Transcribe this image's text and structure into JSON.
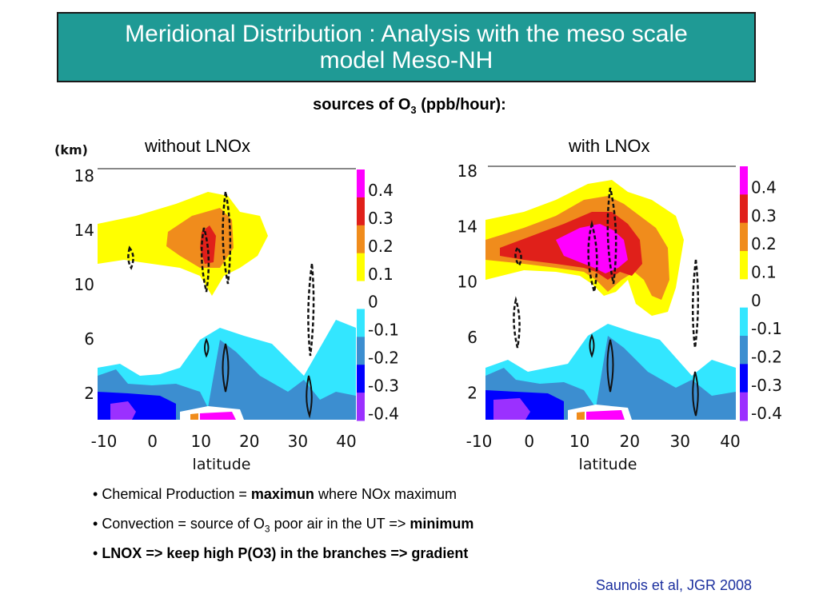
{
  "header": {
    "title_line1": "Meridional Distribution : Analysis with the meso scale",
    "title_line2": "model Meso-NH"
  },
  "subtitle": {
    "prefix": "sources of O",
    "sub": "3",
    "suffix": " (ppb/hour):"
  },
  "colors": {
    "title_bg": "#1f9a95",
    "citation": "#1b2f9e"
  },
  "chart_data": [
    {
      "type": "heatmap",
      "panel_label": "without LNOx",
      "ylabel": "(km)",
      "xlabel": "latitude",
      "xlim": [
        -10,
        40
      ],
      "ylim": [
        0,
        18
      ],
      "x_ticks": [
        "-10",
        "0",
        "10",
        "20",
        "30",
        "40"
      ],
      "y_ticks": [
        "18",
        "14",
        "10",
        "6",
        "2"
      ],
      "y_tick_values": [
        18,
        14,
        10,
        6,
        2
      ],
      "grid": false,
      "colorbar": {
        "levels": [
          "0.4",
          "0.3",
          "0.2",
          "0.1",
          "0",
          "-0.1",
          "-0.2",
          "-0.3",
          "-0.4"
        ],
        "colors": [
          "#ff00ff",
          "#e0201a",
          "#f08c1c",
          "#ffff00",
          "#ffffff",
          "#33e6ff",
          "#3c8ed0",
          "#0000ff",
          "#9b30ff"
        ]
      }
    },
    {
      "type": "heatmap",
      "panel_label": "with LNOx",
      "ylabel": "",
      "xlabel": "latitude",
      "xlim": [
        -10,
        40
      ],
      "ylim": [
        0,
        18
      ],
      "x_ticks": [
        "-10",
        "0",
        "10",
        "20",
        "30",
        "40"
      ],
      "y_ticks": [
        "18",
        "14",
        "10",
        "6",
        "2"
      ],
      "y_tick_values": [
        18,
        14,
        10,
        6,
        2
      ],
      "grid": false,
      "colorbar": {
        "levels": [
          "0.4",
          "0.3",
          "0.2",
          "0.1",
          "0",
          "-0.1",
          "-0.2",
          "-0.3",
          "-0.4"
        ],
        "colors": [
          "#ff00ff",
          "#e0201a",
          "#f08c1c",
          "#ffff00",
          "#ffffff",
          "#33e6ff",
          "#3c8ed0",
          "#0000ff",
          "#9b30ff"
        ]
      }
    }
  ],
  "bullets": [
    {
      "marker": "• ",
      "pre": "Chemical Production = ",
      "bold": "maximun",
      "post": " where NOx maximum"
    },
    {
      "marker": "• ",
      "pre": "Convection = source of O",
      "sub": "3",
      "post": " poor air in the UT => ",
      "bold": "minimum"
    },
    {
      "marker": "• ",
      "bold": "LNOX => keep high P(O3) in the branches => gradient"
    }
  ],
  "citation": "Saunois et al, JGR 2008"
}
